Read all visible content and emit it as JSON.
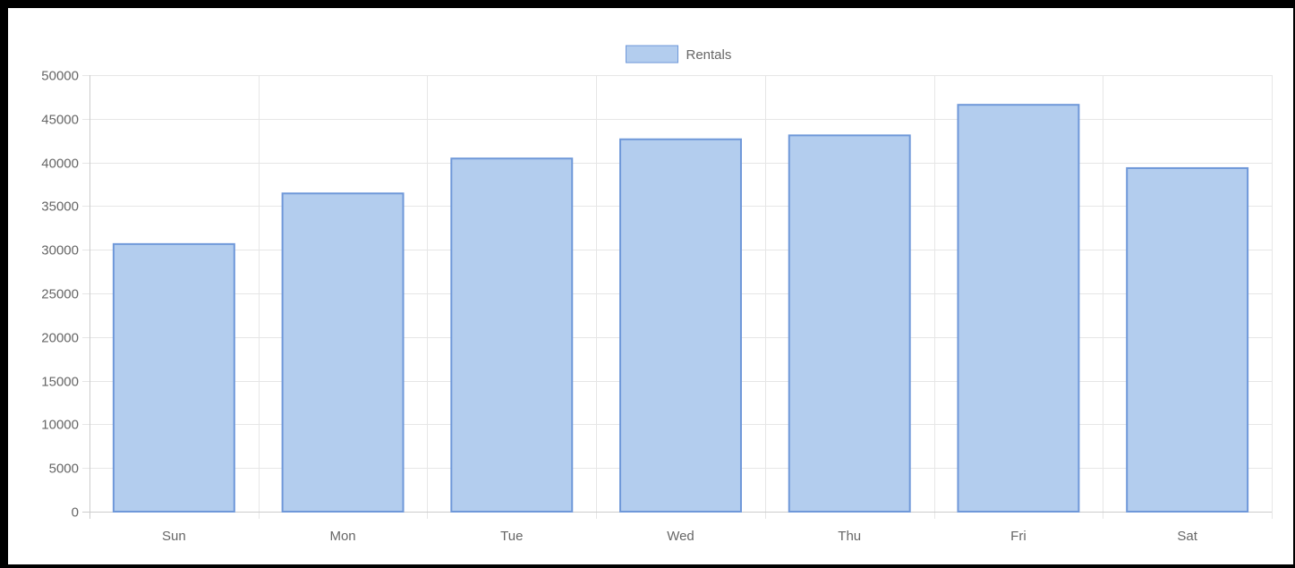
{
  "chart_data": {
    "type": "bar",
    "categories": [
      "Sun",
      "Mon",
      "Tue",
      "Wed",
      "Thu",
      "Fri",
      "Sat"
    ],
    "series": [
      {
        "name": "Rentals",
        "values": [
          30650,
          36450,
          40450,
          42650,
          43100,
          46600,
          39350
        ],
        "fill_color": "#b3cdee",
        "border_color": "#6f98d9"
      }
    ],
    "ylim": [
      0,
      50000
    ],
    "y_ticks": [
      0,
      5000,
      10000,
      15000,
      20000,
      25000,
      30000,
      35000,
      40000,
      45000,
      50000
    ],
    "grid": true,
    "legend_position": "top-center",
    "title": "",
    "xlabel": "",
    "ylabel": ""
  }
}
